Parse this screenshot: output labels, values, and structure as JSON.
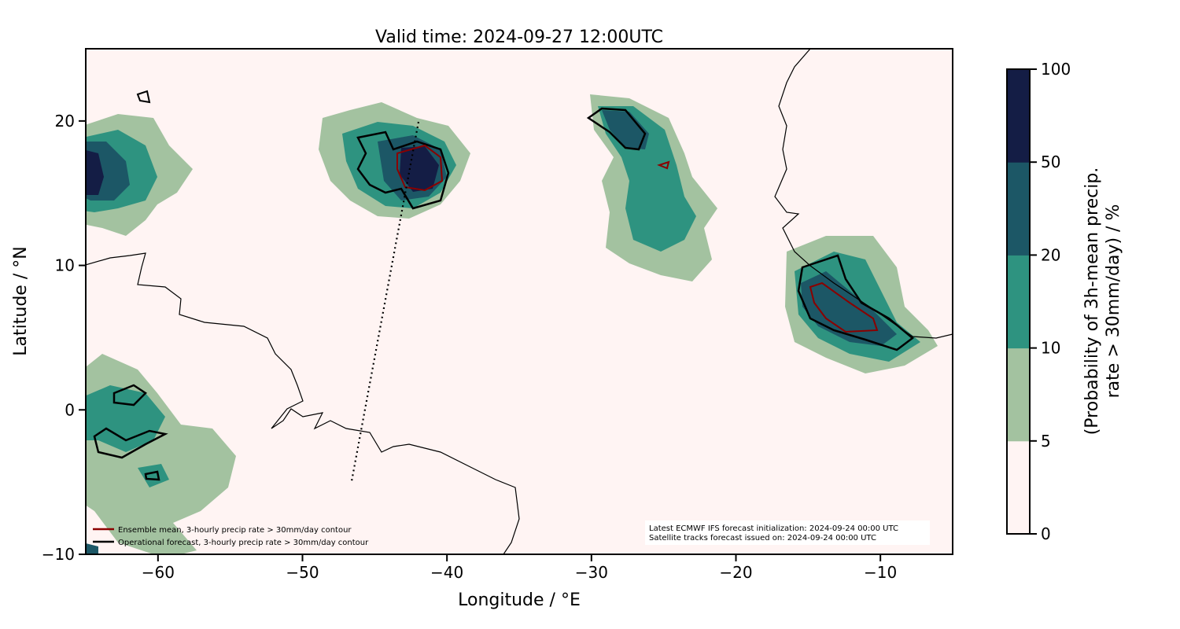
{
  "chart_data": {
    "type": "heatmap",
    "title": "Valid time: 2024-09-27 12:00UTC",
    "xlabel": "Longitude / °E",
    "ylabel": "Latitude / °N",
    "xlim": [
      -65,
      -5
    ],
    "ylim": [
      -10,
      25
    ],
    "xticks": [
      -60,
      -50,
      -40,
      -30,
      -20,
      -10
    ],
    "xtick_labels": [
      "−60",
      "−50",
      "−40",
      "−30",
      "−20",
      "−10"
    ],
    "yticks": [
      -10,
      0,
      10,
      20
    ],
    "ytick_labels": [
      "−10",
      "0",
      "10",
      "20"
    ],
    "grid": false,
    "background_color": "#fff4f3",
    "colorbar": {
      "label_line1": "(Probability of 3h-mean precip.",
      "label_line2": "rate > 30mm/day) / %",
      "levels": [
        0,
        5,
        10,
        20,
        50,
        100
      ],
      "level_labels": [
        "0",
        "5",
        "10",
        "20",
        "50",
        "100"
      ],
      "colors": [
        "#fff4f3",
        "#a3c2a0",
        "#2e9380",
        "#1c5766",
        "#141d45"
      ]
    },
    "legend": {
      "placement": "lower-left",
      "entries": [
        {
          "label": "Ensemble mean, 3-hourly precip rate > 30mm/day contour",
          "color": "#8b0000"
        },
        {
          "label": "Operational forecast, 3-hourly precip rate > 30mm/day contour",
          "color": "#000000"
        }
      ]
    },
    "annotation": {
      "placement": "lower-right",
      "line1": "Latest ECMWF IFS forecast initialization: 2024-09-24 00:00 UTC",
      "line2": "Satellite tracks forecast issued on: 2024-09-24 00:00 UTC"
    },
    "satellite_track": {
      "style": "dotted",
      "lon": [
        -42,
        -46.8
      ],
      "lat": [
        20,
        -5
      ]
    },
    "precip_regions": [
      {
        "center_lon": -62.5,
        "center_lat": 16.5,
        "max_level_pct": 50
      },
      {
        "center_lon": -43,
        "center_lat": 17,
        "max_level_pct": 50
      },
      {
        "center_lon": -27,
        "center_lat": 15,
        "max_level_pct": 50
      },
      {
        "center_lon": -11,
        "center_lat": 7,
        "max_level_pct": 50
      },
      {
        "center_lon": -62,
        "center_lat": -2,
        "max_level_pct": 20
      }
    ]
  }
}
